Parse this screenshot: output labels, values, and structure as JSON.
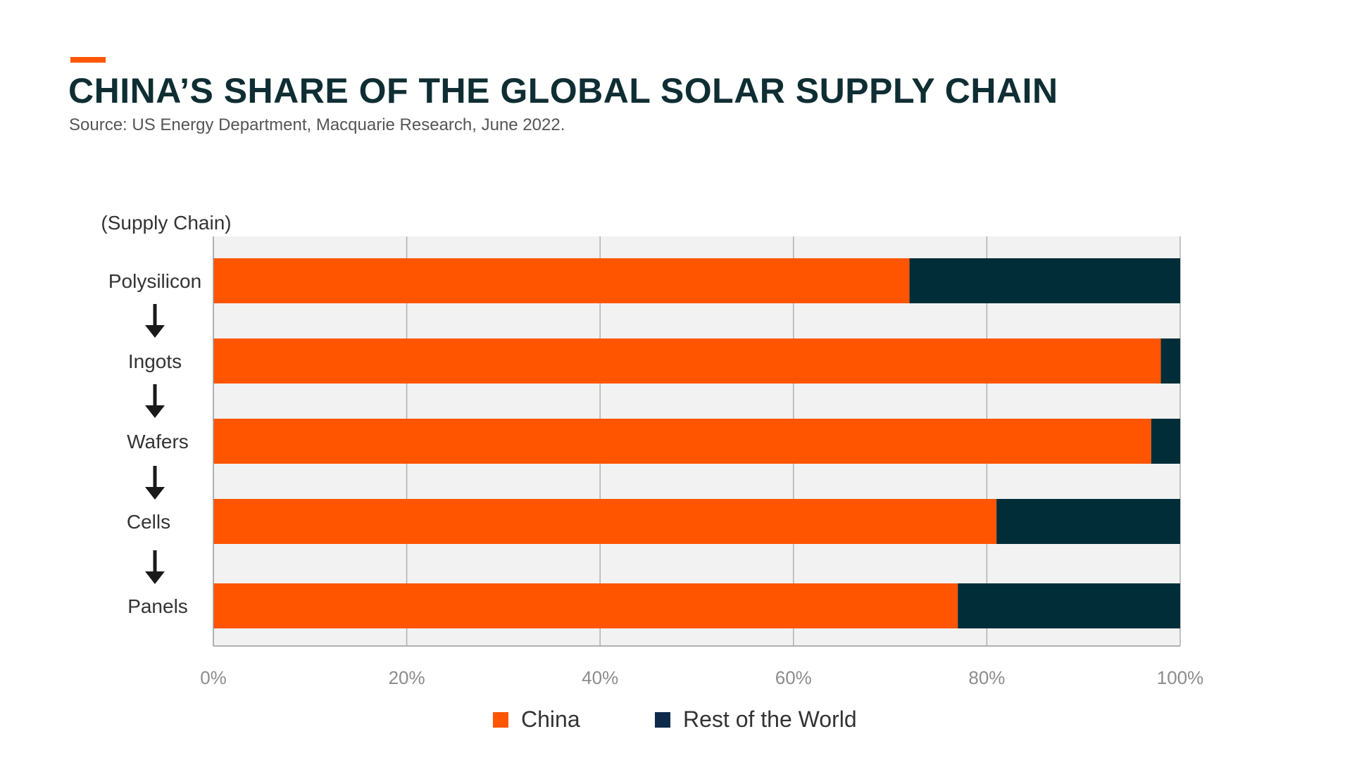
{
  "header": {
    "title": "CHINA’S SHARE OF THE GLOBAL SOLAR SUPPLY CHAIN",
    "subtitle": "Source: US Energy Department, Macquarie Research, June 2022.",
    "accent_color": "#ff5500"
  },
  "colors": {
    "china": "#ff5500",
    "rest": "#012d38",
    "plot_bg": "#f2f2f2",
    "grid": "#b0b0b0",
    "arrow": "#1a1a1a"
  },
  "chart_data": {
    "type": "bar",
    "orientation": "horizontal",
    "stacked": true,
    "title": "CHINA’S SHARE OF THE GLOBAL SOLAR SUPPLY CHAIN",
    "ylabel": "(Supply Chain)",
    "xlabel": "",
    "categories": [
      "Polysilicon",
      "Ingots",
      "Wafers",
      "Cells",
      "Panels"
    ],
    "series": [
      {
        "name": "China",
        "values": [
          72,
          98,
          97,
          81,
          77
        ]
      },
      {
        "name": "Rest of the World",
        "values": [
          28,
          2,
          3,
          19,
          23
        ]
      }
    ],
    "xlim": [
      0,
      100
    ],
    "xticks": [
      0,
      20,
      40,
      60,
      80,
      100
    ],
    "xtick_labels": [
      "0%",
      "20%",
      "40%",
      "60%",
      "80%",
      "100%"
    ],
    "grid": true,
    "flow_arrows": true,
    "legend_position": "bottom"
  }
}
